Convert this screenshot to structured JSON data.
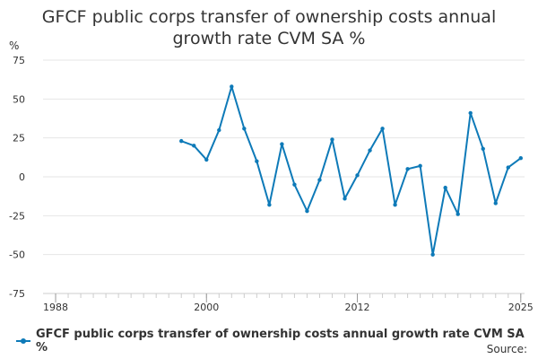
{
  "title_lines": [
    "GFCF public corps transfer of ownership costs annual",
    "growth rate CVM SA %"
  ],
  "unit_label": "%",
  "source_label": "Source:",
  "colors": {
    "series": "#0e7ab8",
    "grid": "#e6e6e6",
    "axis": "#cccccc",
    "text": "#333333"
  },
  "chart_data": {
    "type": "line",
    "title": "GFCF public corps transfer of ownership costs annual growth rate CVM SA %",
    "xlabel": "",
    "ylabel": "%",
    "xlim": [
      1987,
      2025.3
    ],
    "ylim": [
      -75,
      75
    ],
    "y_ticks": [
      75,
      50,
      25,
      0,
      -25,
      -50,
      -75
    ],
    "x_tick_labels": [
      "1988",
      "2000",
      "2012",
      "2025"
    ],
    "x_tick_values": [
      1988,
      2000,
      2012,
      2025
    ],
    "x_minor_ticks": [
      1988,
      1989,
      1990,
      1991,
      1992,
      1993,
      1994,
      1995,
      1996,
      1997,
      1998,
      1999,
      2000,
      2001,
      2002,
      2003,
      2004,
      2005,
      2006,
      2007,
      2008,
      2009,
      2010,
      2011,
      2012,
      2013,
      2014,
      2015,
      2016,
      2017,
      2018,
      2019,
      2020,
      2021,
      2022,
      2023,
      2024,
      2025
    ],
    "grid": true,
    "legend": "bottom",
    "series": [
      {
        "name": "GFCF public corps transfer of ownership costs annual growth rate CVM SA %",
        "x": [
          1998,
          1999,
          2000,
          2001,
          2002,
          2003,
          2004,
          2005,
          2006,
          2007,
          2008,
          2009,
          2010,
          2011,
          2012,
          2013,
          2014,
          2015,
          2016,
          2017,
          2018,
          2019,
          2020,
          2021,
          2022,
          2023,
          2024,
          2025
        ],
        "values": [
          23,
          20,
          11,
          30,
          58,
          31,
          10,
          -18,
          21,
          -5,
          -22,
          -2,
          24,
          -14,
          1,
          17,
          31,
          -18,
          5,
          7,
          -50,
          -7,
          -24,
          41,
          18,
          -17,
          6,
          12
        ]
      }
    ]
  }
}
